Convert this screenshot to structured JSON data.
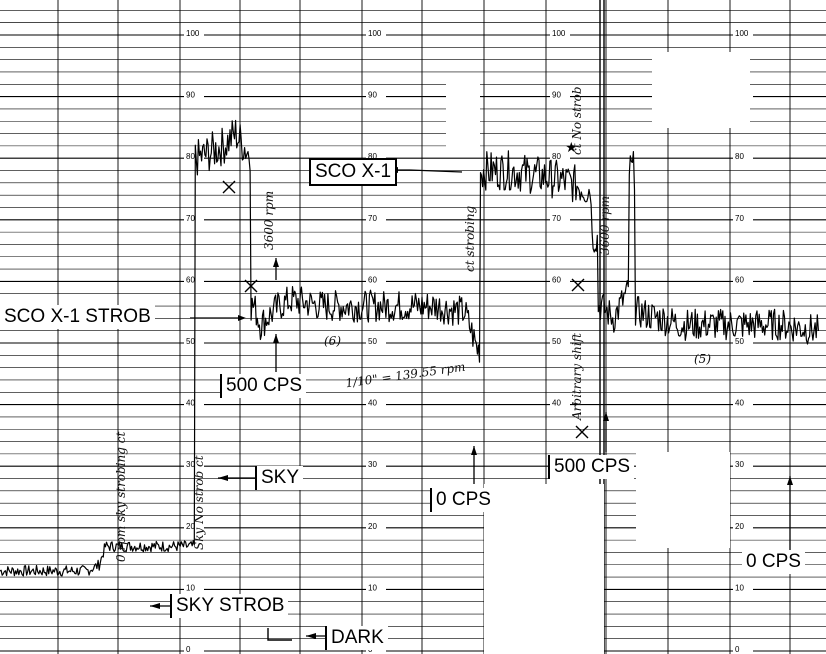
{
  "chart_data": {
    "type": "line",
    "title": "",
    "xlabel": "",
    "ylabel": "",
    "ylim": [
      0,
      100
    ],
    "y_ticks": [
      "100",
      "90",
      "80",
      "70",
      "60",
      "50",
      "40",
      "30",
      "20",
      "10",
      "0"
    ],
    "grid": true,
    "series": [
      {
        "values": [
          {
            "x": 0.0,
            "y": 13
          },
          {
            "x": 0.05,
            "y": 13
          },
          {
            "x": 0.1,
            "y": 13
          },
          {
            "x": 0.14,
            "y": 13
          },
          {
            "x": 0.16,
            "y": 14
          },
          {
            "x": 0.17,
            "y": 17
          },
          {
            "x": 0.2,
            "y": 17
          },
          {
            "x": 0.24,
            "y": 17
          },
          {
            "x": 0.28,
            "y": 17
          },
          {
            "x": 0.31,
            "y": 17
          },
          {
            "x": 0.32,
            "y": 80
          },
          {
            "x": 0.36,
            "y": 82
          },
          {
            "x": 0.38,
            "y": 84
          },
          {
            "x": 0.4,
            "y": 81
          },
          {
            "x": 0.41,
            "y": 56
          },
          {
            "x": 0.42,
            "y": 53
          },
          {
            "x": 0.43,
            "y": 54
          },
          {
            "x": 0.45,
            "y": 56
          },
          {
            "x": 0.47,
            "y": 57
          },
          {
            "x": 0.52,
            "y": 56
          },
          {
            "x": 0.58,
            "y": 56
          },
          {
            "x": 0.64,
            "y": 56
          },
          {
            "x": 0.7,
            "y": 56
          },
          {
            "x": 0.75,
            "y": 55
          },
          {
            "x": 0.77,
            "y": 49
          },
          {
            "x": 0.78,
            "y": 78
          },
          {
            "x": 0.82,
            "y": 78
          },
          {
            "x": 0.88,
            "y": 77
          },
          {
            "x": 0.92,
            "y": 76
          },
          {
            "x": 0.95,
            "y": 75
          },
          {
            "x": 0.96,
            "y": 67
          },
          {
            "x": 0.97,
            "y": 56
          },
          {
            "x": 0.99,
            "y": 54
          },
          {
            "x": 1.01,
            "y": 58
          },
          {
            "x": 1.02,
            "y": 78
          },
          {
            "x": 1.03,
            "y": 55
          },
          {
            "x": 1.1,
            "y": 53
          },
          {
            "x": 1.18,
            "y": 53
          },
          {
            "x": 1.26,
            "y": 53
          },
          {
            "x": 1.32,
            "y": 52
          }
        ]
      }
    ],
    "labels": {
      "sco_x1": "SCO X-1",
      "sco_x1_strob": "SCO X-1 STROB",
      "cps_500_a": "500 CPS",
      "cps_500_b": "500 CPS",
      "cps_0_a": "0 CPS",
      "cps_0_b": "0 CPS",
      "sky": "SKY",
      "sky_strob": "SKY STROB",
      "dark": "DARK"
    },
    "handwritten": {
      "rpm_3600": "3600 rpm",
      "rpm_3600_b": "3600 rpm",
      "fraction": "1/10\" = 139.55 rpm",
      "run_6": "(6)",
      "run_5": "(5)",
      "sky_strob_ct": "0 rpm sky strobing ct",
      "sky_no_strob": "Sky No strob ct",
      "strobing": "ct strobing",
      "no_strob": "ct No strob",
      "arbitrary": "Arbitrary shift"
    }
  }
}
